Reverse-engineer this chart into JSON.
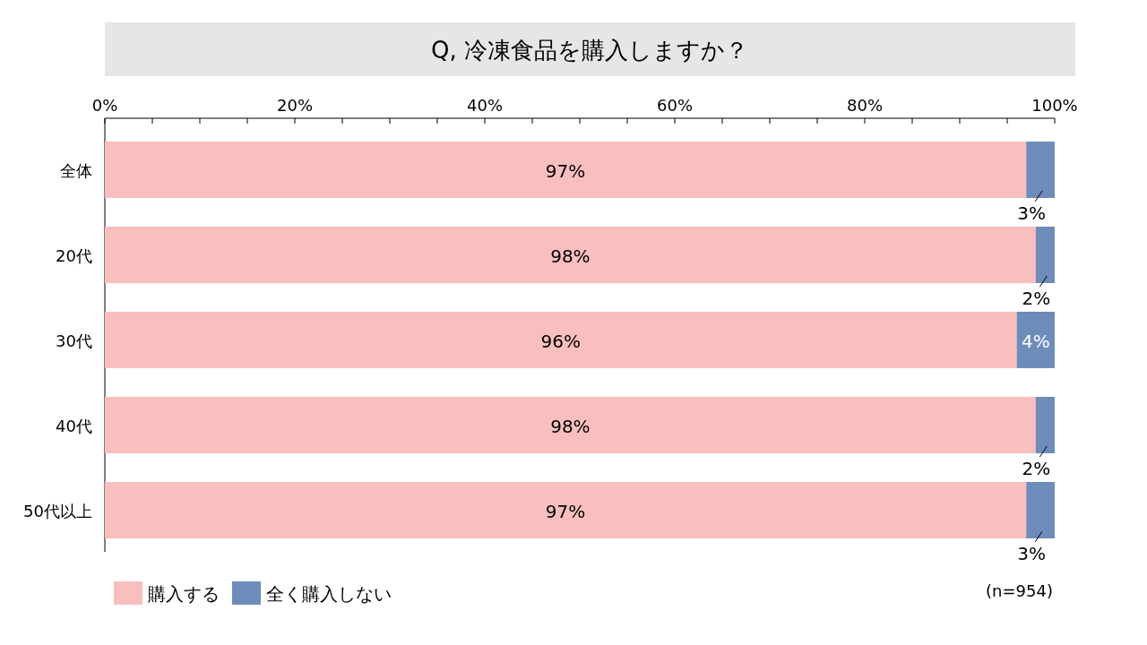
{
  "chart_data": {
    "type": "bar",
    "orientation": "horizontal",
    "stacked": true,
    "title": "Q, 冷凍食品を購入しますか？",
    "categories": [
      "全体",
      "20代",
      "30代",
      "40代",
      "50代以上"
    ],
    "series": [
      {
        "name": "購入する",
        "color": "#f9bebe",
        "values": [
          97,
          98,
          96,
          98,
          97
        ],
        "value_labels": [
          "97%",
          "98%",
          "96%",
          "98%",
          "97%"
        ]
      },
      {
        "name": "全く購入しない",
        "color": "#6e8cba",
        "values": [
          3,
          2,
          4,
          2,
          3
        ],
        "value_labels": [
          "3%",
          "2%",
          "4%",
          "2%",
          "3%"
        ]
      }
    ],
    "xlim": [
      0,
      100
    ],
    "xticks": [
      {
        "value": 0,
        "label": "0%"
      },
      {
        "value": 5,
        "label": null
      },
      {
        "value": 10,
        "label": null
      },
      {
        "value": 15,
        "label": null
      },
      {
        "value": 20,
        "label": "20%"
      },
      {
        "value": 25,
        "label": null
      },
      {
        "value": 30,
        "label": null
      },
      {
        "value": 35,
        "label": null
      },
      {
        "value": 40,
        "label": "40%"
      },
      {
        "value": 45,
        "label": null
      },
      {
        "value": 50,
        "label": null
      },
      {
        "value": 55,
        "label": null
      },
      {
        "value": 60,
        "label": "60%"
      },
      {
        "value": 65,
        "label": null
      },
      {
        "value": 70,
        "label": null
      },
      {
        "value": 75,
        "label": null
      },
      {
        "value": 80,
        "label": "80%"
      },
      {
        "value": 85,
        "label": null
      },
      {
        "value": 90,
        "label": null
      },
      {
        "value": 95,
        "label": null
      },
      {
        "value": 100,
        "label": "100%"
      }
    ],
    "legend": "bottom left",
    "grid": false,
    "annotations": [
      "(n=954)"
    ]
  }
}
